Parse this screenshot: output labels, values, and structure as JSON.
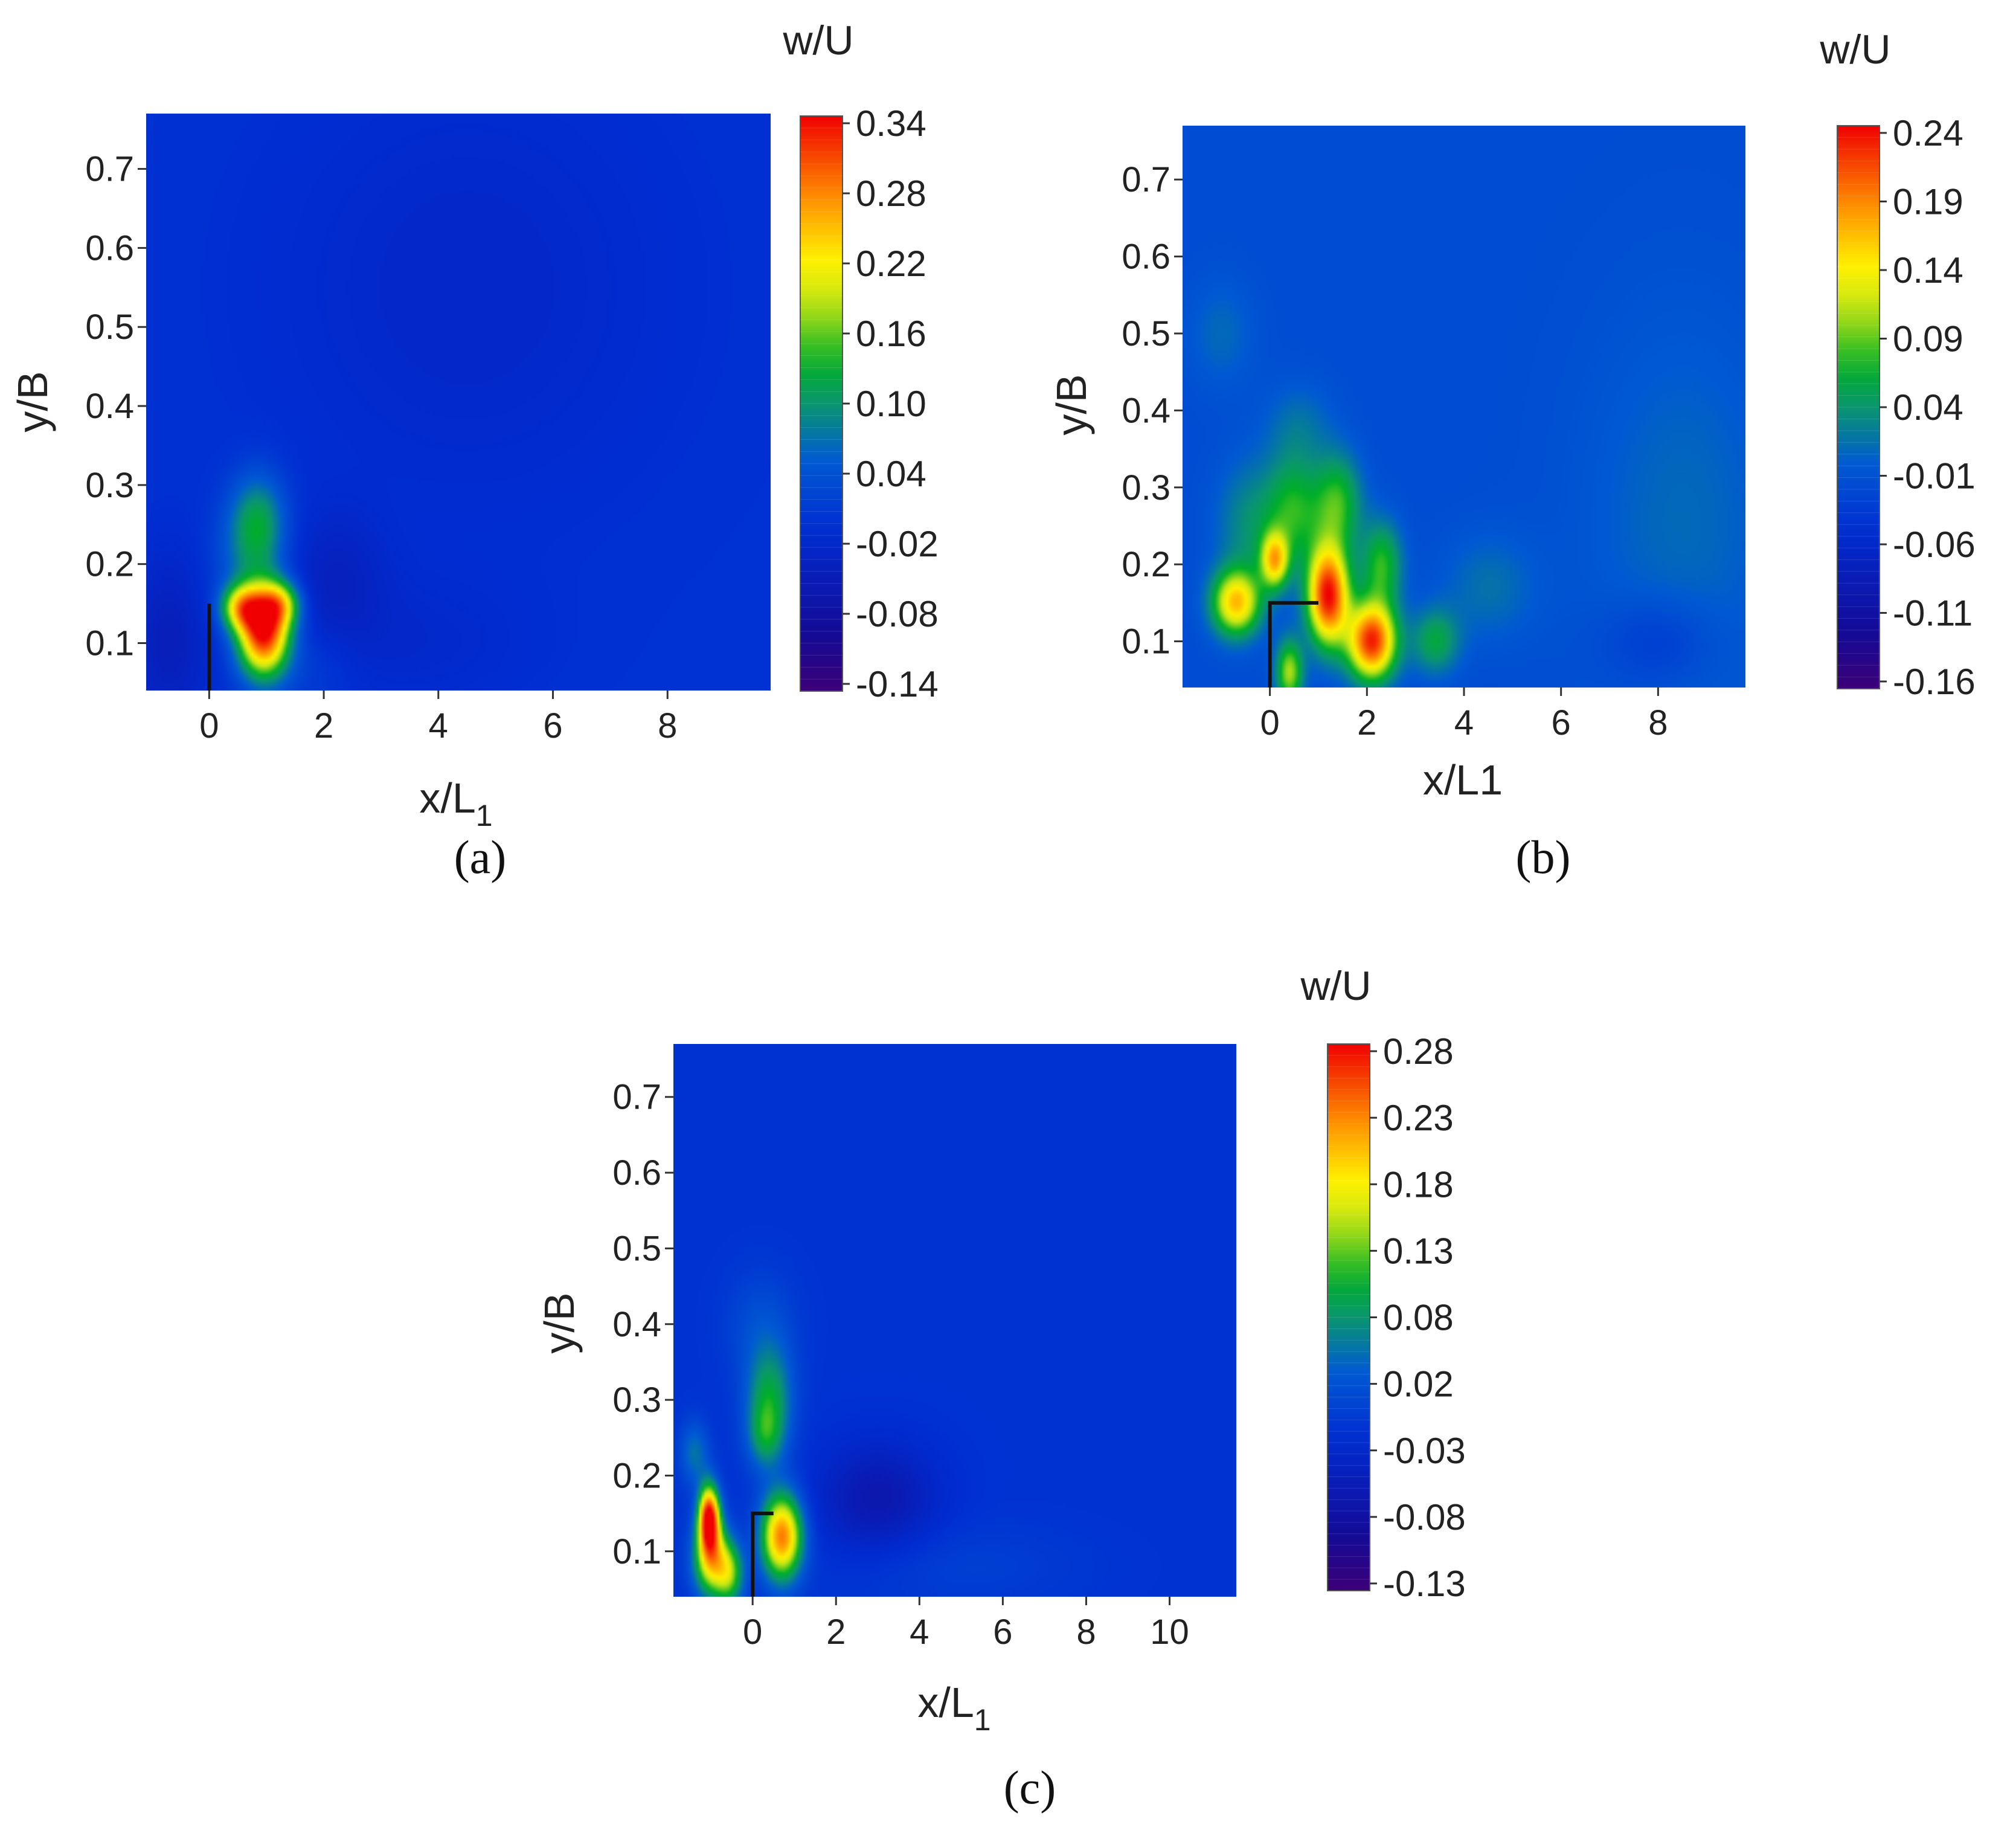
{
  "chart_data": [
    {
      "type": "heatmap",
      "panel_label": "(a)",
      "xlabel_main": "x/L",
      "xlabel_sub": "1",
      "ylabel": "y/B",
      "colorbar_title": "w/U",
      "xlim": [
        -1.1,
        9.8
      ],
      "ylim": [
        0.04,
        0.77
      ],
      "xticks": [
        0,
        2,
        4,
        6,
        8
      ],
      "yticks": [
        0.1,
        0.2,
        0.3,
        0.4,
        0.5,
        0.6,
        0.7
      ],
      "colorbar_ticks": [
        "0.34",
        "0.28",
        "0.22",
        "0.16",
        "0.10",
        "0.04",
        "-0.02",
        "-0.08",
        "-0.14"
      ],
      "value_range": [
        -0.14,
        0.34
      ],
      "background_value": 0.0,
      "blobs": [
        {
          "x": 0.95,
          "y": 0.115,
          "amp": 0.34,
          "sx": 0.32,
          "sy": 0.04
        },
        {
          "x": 0.55,
          "y": 0.145,
          "amp": 0.17,
          "sx": 0.25,
          "sy": 0.02
        },
        {
          "x": 1.25,
          "y": 0.15,
          "amp": 0.14,
          "sx": 0.25,
          "sy": 0.02
        },
        {
          "x": 0.85,
          "y": 0.25,
          "amp": 0.12,
          "sx": 0.35,
          "sy": 0.045
        },
        {
          "x": 0.5,
          "y": 0.2,
          "amp": 0.03,
          "sx": 0.4,
          "sy": 0.05
        },
        {
          "x": -0.7,
          "y": 0.1,
          "amp": -0.04,
          "sx": 0.5,
          "sy": 0.08
        },
        {
          "x": 2.2,
          "y": 0.18,
          "amp": -0.03,
          "sx": 0.6,
          "sy": 0.06
        },
        {
          "x": 1.8,
          "y": 0.07,
          "amp": 0.02,
          "sx": 0.5,
          "sy": 0.04
        },
        {
          "x": 4.5,
          "y": 0.55,
          "amp": -0.02,
          "sx": 2.5,
          "sy": 0.2
        },
        {
          "x": 3.5,
          "y": 0.1,
          "amp": -0.015,
          "sx": 1.5,
          "sy": 0.06
        }
      ],
      "obstacle": [
        [
          0,
          0.04
        ],
        [
          0,
          0.15
        ]
      ]
    },
    {
      "type": "heatmap",
      "panel_label": "(b)",
      "xlabel_main": "x/L1",
      "xlabel_sub": "",
      "ylabel": "y/B",
      "colorbar_title": "w/U",
      "xlim": [
        -1.8,
        9.8
      ],
      "ylim": [
        0.04,
        0.77
      ],
      "xticks": [
        0,
        2,
        4,
        6,
        8
      ],
      "yticks": [
        0.1,
        0.2,
        0.3,
        0.4,
        0.5,
        0.6,
        0.7
      ],
      "colorbar_ticks": [
        "0.24",
        "0.19",
        "0.14",
        "0.09",
        "0.04",
        "-0.01",
        "-0.06",
        "-0.11",
        "-0.16"
      ],
      "value_range": [
        -0.16,
        0.24
      ],
      "background_value": -0.015,
      "blobs": [
        {
          "x": 1.2,
          "y": 0.16,
          "amp": 0.25,
          "sx": 0.3,
          "sy": 0.045
        },
        {
          "x": 2.1,
          "y": 0.1,
          "amp": 0.24,
          "sx": 0.35,
          "sy": 0.035
        },
        {
          "x": -0.7,
          "y": 0.15,
          "amp": 0.17,
          "sx": 0.35,
          "sy": 0.03
        },
        {
          "x": 0.1,
          "y": 0.205,
          "amp": 0.15,
          "sx": 0.2,
          "sy": 0.025
        },
        {
          "x": 0.4,
          "y": 0.06,
          "amp": 0.12,
          "sx": 0.2,
          "sy": 0.03
        },
        {
          "x": 0.5,
          "y": 0.27,
          "amp": 0.08,
          "sx": 0.4,
          "sy": 0.05
        },
        {
          "x": 1.4,
          "y": 0.28,
          "amp": 0.09,
          "sx": 0.35,
          "sy": 0.045
        },
        {
          "x": 2.3,
          "y": 0.2,
          "amp": 0.09,
          "sx": 0.3,
          "sy": 0.04
        },
        {
          "x": -0.4,
          "y": 0.25,
          "amp": 0.05,
          "sx": 0.5,
          "sy": 0.06
        },
        {
          "x": 3.4,
          "y": 0.1,
          "amp": 0.07,
          "sx": 0.35,
          "sy": 0.03
        },
        {
          "x": 0.6,
          "y": 0.38,
          "amp": 0.03,
          "sx": 0.5,
          "sy": 0.04
        },
        {
          "x": -1.0,
          "y": 0.5,
          "amp": 0.025,
          "sx": 0.5,
          "sy": 0.05
        },
        {
          "x": 4.5,
          "y": 0.17,
          "amp": 0.03,
          "sx": 0.7,
          "sy": 0.05
        },
        {
          "x": 8.5,
          "y": 0.25,
          "amp": 0.025,
          "sx": 1.5,
          "sy": 0.2
        },
        {
          "x": 8.0,
          "y": 0.1,
          "amp": -0.03,
          "sx": 0.8,
          "sy": 0.04
        }
      ],
      "obstacle": [
        [
          0,
          0.04
        ],
        [
          0,
          0.15
        ],
        [
          1.0,
          0.15
        ]
      ]
    },
    {
      "type": "heatmap",
      "panel_label": "(c)",
      "xlabel_main": "x/L",
      "xlabel_sub": "1",
      "ylabel": "y/B",
      "colorbar_title": "w/U",
      "xlim": [
        -1.9,
        11.6
      ],
      "ylim": [
        0.04,
        0.77
      ],
      "xticks": [
        0,
        2,
        4,
        6,
        8,
        10
      ],
      "yticks": [
        0.1,
        0.2,
        0.3,
        0.4,
        0.5,
        0.6,
        0.7
      ],
      "colorbar_ticks": [
        "0.28",
        "0.23",
        "0.18",
        "0.13",
        "0.08",
        "0.02",
        "-0.03",
        "-0.08",
        "-0.13"
      ],
      "value_range": [
        -0.13,
        0.28
      ],
      "background_value": -0.01,
      "blobs": [
        {
          "x": -1.05,
          "y": 0.145,
          "amp": 0.28,
          "sx": 0.18,
          "sy": 0.03
        },
        {
          "x": -1.0,
          "y": 0.09,
          "amp": 0.18,
          "sx": 0.3,
          "sy": 0.035
        },
        {
          "x": -0.55,
          "y": 0.07,
          "amp": 0.12,
          "sx": 0.25,
          "sy": 0.03
        },
        {
          "x": 0.7,
          "y": 0.12,
          "amp": 0.24,
          "sx": 0.35,
          "sy": 0.04
        },
        {
          "x": 0.4,
          "y": 0.3,
          "amp": 0.1,
          "sx": 0.4,
          "sy": 0.05
        },
        {
          "x": 0.3,
          "y": 0.25,
          "amp": 0.06,
          "sx": 0.3,
          "sy": 0.03
        },
        {
          "x": -1.4,
          "y": 0.23,
          "amp": 0.06,
          "sx": 0.25,
          "sy": 0.03
        },
        {
          "x": 0.2,
          "y": 0.4,
          "amp": 0.03,
          "sx": 0.6,
          "sy": 0.05
        },
        {
          "x": 3.0,
          "y": 0.17,
          "amp": -0.05,
          "sx": 1.0,
          "sy": 0.05
        },
        {
          "x": 5.0,
          "y": 0.08,
          "amp": 0.015,
          "sx": 2.0,
          "sy": 0.04
        }
      ],
      "obstacle": [
        [
          0,
          0.04
        ],
        [
          0,
          0.15
        ],
        [
          0.5,
          0.15
        ]
      ]
    }
  ]
}
